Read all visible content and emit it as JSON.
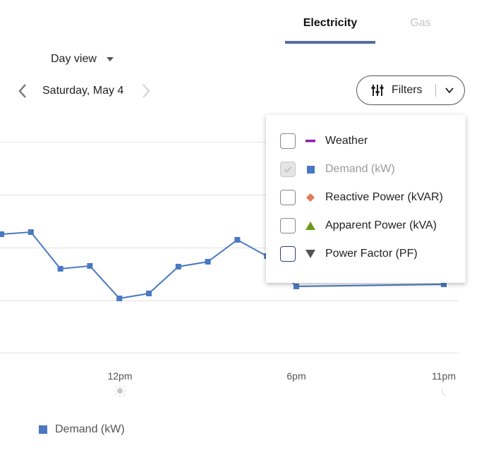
{
  "tabs": [
    {
      "label": "Electricity",
      "active": true
    },
    {
      "label": "Gas",
      "active": false
    }
  ],
  "view_select": {
    "value": "Day view"
  },
  "date_nav": {
    "prev_icon": "chevron-left-icon",
    "label": "Saturday, May 4",
    "next_icon": "chevron-right-icon",
    "next_disabled": true
  },
  "filters": {
    "label": "Filters",
    "expanded": true,
    "options": [
      {
        "label": "Weather",
        "checked": false,
        "disabled": false,
        "marker": "dash",
        "color": "#8b1fa8"
      },
      {
        "label": "Demand (kW)",
        "checked": true,
        "disabled": true,
        "marker": "square",
        "color": "#4a78c2"
      },
      {
        "label": "Reactive Power (kVAR)",
        "checked": false,
        "disabled": false,
        "marker": "diamond",
        "color": "#e07b5a"
      },
      {
        "label": "Apparent Power (kVA)",
        "checked": false,
        "disabled": false,
        "marker": "triangle-up",
        "color": "#6a9a1a"
      },
      {
        "label": "Power Factor (PF)",
        "checked": false,
        "disabled": false,
        "marker": "triangle-down",
        "color": "#555555"
      }
    ]
  },
  "chart_data": {
    "type": "line",
    "title": "",
    "xlabel": "",
    "ylabel": "",
    "x_ticks": [
      {
        "label": "12pm",
        "icon": "sun-icon"
      },
      {
        "label": "6pm",
        "icon": ""
      },
      {
        "label": "11pm",
        "icon": "moon-icon"
      }
    ],
    "grid": true,
    "legend_position": "bottom-left",
    "series": [
      {
        "name": "Demand (kW)",
        "color": "#4a78c2",
        "note": "values are relative plot heights (pixels from baseline); y-axis not labeled; points between ~7pm and 10pm hidden by filter dropdown",
        "points": [
          {
            "hour": 6,
            "value": 168
          },
          {
            "hour": 7,
            "value": 171
          },
          {
            "hour": 8,
            "value": 119
          },
          {
            "hour": 9,
            "value": 123
          },
          {
            "hour": 10,
            "value": 77
          },
          {
            "hour": 11,
            "value": 84
          },
          {
            "hour": 12,
            "value": 122
          },
          {
            "hour": 13,
            "value": 129
          },
          {
            "hour": 14,
            "value": 160
          },
          {
            "hour": 15,
            "value": 137
          },
          {
            "hour": 16,
            "value": 94
          },
          {
            "hour": 21,
            "value": 97
          }
        ]
      }
    ]
  },
  "legend": {
    "items": [
      {
        "label": "Demand (kW)",
        "color": "#4a78c2"
      }
    ]
  }
}
